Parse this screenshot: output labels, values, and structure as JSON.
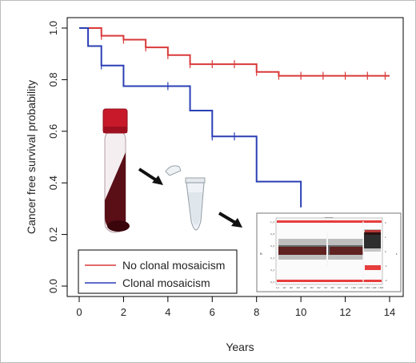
{
  "chart_data": {
    "type": "line",
    "subtype": "kaplan-meier step",
    "title": "",
    "xlabel": "Years",
    "ylabel": "Cancer free survival probability",
    "xlim": [
      0,
      14
    ],
    "ylim": [
      0,
      1
    ],
    "x_ticks": [
      "0",
      "2",
      "4",
      "6",
      "8",
      "10",
      "12",
      "14"
    ],
    "y_ticks": [
      "0.0",
      "0.2",
      "0.4",
      "0.6",
      "0.8",
      "1.0"
    ],
    "grid": false,
    "legend_position": "bottom-left",
    "series": [
      {
        "name": "No clonal mosaicism",
        "color": "#d93a3a",
        "steps": [
          [
            0,
            1.0
          ],
          [
            1,
            0.97
          ],
          [
            2,
            0.955
          ],
          [
            3,
            0.925
          ],
          [
            4,
            0.895
          ],
          [
            5,
            0.86
          ],
          [
            8,
            0.83
          ],
          [
            9,
            0.815
          ],
          [
            14,
            0.815
          ]
        ],
        "censor_x": [
          1,
          2,
          3,
          4,
          5,
          6,
          7,
          8,
          9,
          10,
          11,
          12,
          13,
          13.8
        ]
      },
      {
        "name": "Clonal mosaicism",
        "color": "#2b3fb5",
        "steps": [
          [
            0,
            1.0
          ],
          [
            0.4,
            0.93
          ],
          [
            1,
            0.855
          ],
          [
            2,
            0.775
          ],
          [
            5,
            0.68
          ],
          [
            6,
            0.58
          ],
          [
            8,
            0.405
          ],
          [
            10,
            0.305
          ]
        ],
        "censor_x": [
          1,
          4,
          6,
          7
        ]
      }
    ]
  },
  "illustration": {
    "inset_title": "mmm",
    "inset_subtitle": "Chromosome X",
    "inset_xticks": [
      "0_0",
      "1E7",
      "2E7",
      "3E7",
      "4E7",
      "5E7",
      "6E7",
      "7E7",
      "8E7",
      "9E7",
      "1E8",
      "1.1E8",
      "1.2E8",
      "1.3E8",
      "1.4E8",
      "1.5E8"
    ],
    "inset_yticks_left": [
      "0_0",
      "0_2",
      "0_4",
      "0_6",
      "0_8",
      "1_0"
    ],
    "inset_yticks_right": [
      "-2",
      "-1",
      "0",
      "1",
      "2"
    ],
    "inset_left_axis_label": "B",
    "inset_right_axis_label": "L"
  }
}
